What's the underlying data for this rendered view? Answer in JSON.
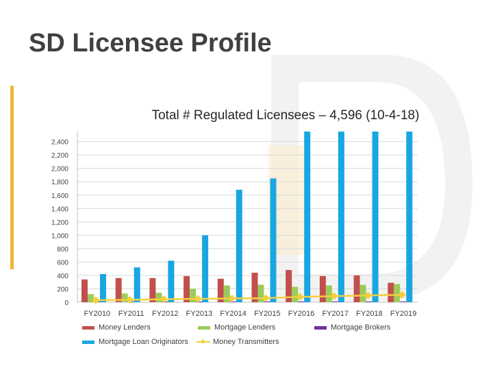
{
  "slide": {
    "title": "SD Licensee Profile"
  },
  "colors": {
    "accent": "#f2b632",
    "money_lenders": "#c0504d",
    "mortgage_lenders": "#9bcc5a",
    "mortgage_brokers": "#7030a0",
    "mlo": "#1aa6e0",
    "money_transmitters": "#f4d03f"
  },
  "chart_data": {
    "type": "bar",
    "title": "Total # Regulated Licensees – 4,596 (10-4-18)",
    "categories": [
      "FY2010",
      "FY2011",
      "FY2012",
      "FY2013",
      "FY2014",
      "FY2015",
      "FY2016",
      "FY2017",
      "FY2018",
      "FY2019"
    ],
    "yticks": [
      "0",
      "200",
      "400",
      "600",
      "800",
      "1,000",
      "1,200",
      "1,400",
      "1,600",
      "1,800",
      "2,000",
      "2,200",
      "2,400"
    ],
    "ylim": [
      0,
      2550
    ],
    "grid": true,
    "legend_position": "bottom",
    "series": [
      {
        "name": "Money Lenders",
        "type": "bar",
        "values": [
          340,
          360,
          360,
          390,
          350,
          440,
          480,
          390,
          400,
          290
        ]
      },
      {
        "name": "Mortgage Lenders",
        "type": "bar",
        "values": [
          120,
          130,
          140,
          200,
          250,
          260,
          230,
          250,
          260,
          270
        ]
      },
      {
        "name": "Mortgage Brokers",
        "type": "bar",
        "values": [
          10,
          10,
          10,
          10,
          10,
          10,
          10,
          10,
          10,
          10
        ]
      },
      {
        "name": "Mortgage Loan Originators",
        "type": "bar",
        "values": [
          420,
          520,
          620,
          1000,
          1680,
          1850,
          2550,
          2550,
          2550,
          2550
        ]
      },
      {
        "name": "Money Transmitters",
        "type": "line",
        "values": [
          30,
          35,
          45,
          50,
          55,
          60,
          80,
          90,
          100,
          110
        ]
      }
    ]
  }
}
